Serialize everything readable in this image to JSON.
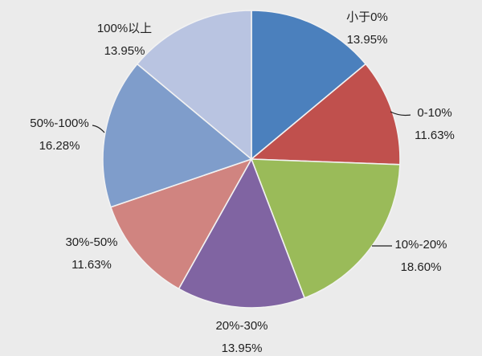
{
  "chart_data": {
    "type": "pie",
    "title": "",
    "legend": "none",
    "background_color": "#EBEBEB",
    "label_text_color": "#1f1f1f",
    "slice_border_color": "#F2F2F2",
    "categories": [
      "小于0%",
      "0-10%",
      "10%-20%",
      "20%-30%",
      "30%-50%",
      "50%-100%",
      "100%以上"
    ],
    "values": [
      13.95,
      11.63,
      18.6,
      13.95,
      11.63,
      16.28,
      13.95
    ],
    "slices": [
      {
        "label": "小于0%",
        "value": 13.95,
        "value_label": "13.95%",
        "color": "#4B80BD"
      },
      {
        "label": "0-10%",
        "value": 11.63,
        "value_label": "11.63%",
        "color": "#C0504D"
      },
      {
        "label": "10%-20%",
        "value": 18.6,
        "value_label": "18.60%",
        "color": "#9ABB59"
      },
      {
        "label": "20%-30%",
        "value": 13.95,
        "value_label": "13.95%",
        "color": "#8064A2"
      },
      {
        "label": "30%-50%",
        "value": 11.63,
        "value_label": "11.63%",
        "color": "#D08480"
      },
      {
        "label": "50%-100%",
        "value": 16.28,
        "value_label": "16.28%",
        "color": "#7F9DCB"
      },
      {
        "label": "100%以上",
        "value": 13.95,
        "value_label": "13.95%",
        "color": "#B9C4E1"
      }
    ]
  }
}
